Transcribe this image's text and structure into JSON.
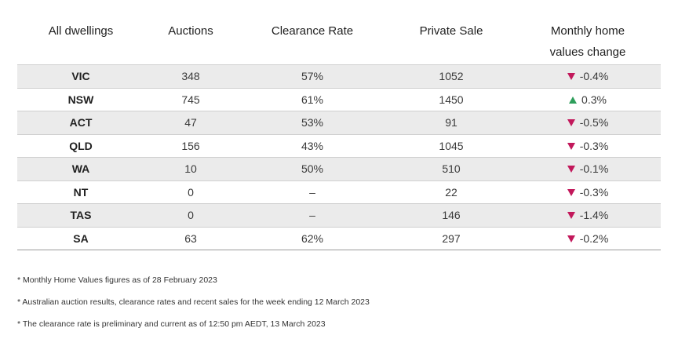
{
  "table": {
    "headers": {
      "col1": "All dwellings",
      "col2": "Auctions",
      "col3": "Clearance Rate",
      "col4": "Private Sale",
      "col5_line1": "Monthly home",
      "col5_line2": "values change"
    },
    "rows": [
      {
        "state": "VIC",
        "auctions": "348",
        "clearance": "57%",
        "private": "1052",
        "direction": "down",
        "change": "-0.4%"
      },
      {
        "state": "NSW",
        "auctions": "745",
        "clearance": "61%",
        "private": "1450",
        "direction": "up",
        "change": "0.3%"
      },
      {
        "state": "ACT",
        "auctions": "47",
        "clearance": "53%",
        "private": "91",
        "direction": "down",
        "change": "-0.5%"
      },
      {
        "state": "QLD",
        "auctions": "156",
        "clearance": "43%",
        "private": "1045",
        "direction": "down",
        "change": "-0.3%"
      },
      {
        "state": "WA",
        "auctions": "10",
        "clearance": "50%",
        "private": "510",
        "direction": "down",
        "change": "-0.1%"
      },
      {
        "state": "NT",
        "auctions": "0",
        "clearance": "–",
        "private": "22",
        "direction": "down",
        "change": "-0.3%"
      },
      {
        "state": "TAS",
        "auctions": "0",
        "clearance": "–",
        "private": "146",
        "direction": "down",
        "change": "-1.4%"
      },
      {
        "state": "SA",
        "auctions": "63",
        "clearance": "62%",
        "private": "297",
        "direction": "down",
        "change": "-0.2%"
      }
    ]
  },
  "colors": {
    "down_arrow": "#c2185b",
    "up_arrow": "#2e9e5b",
    "stripe": "#ebebeb"
  },
  "notes": [
    "* Monthly Home Values figures as of 28 February 2023",
    "* Australian auction results, clearance rates and recent sales for the week ending 12 March 2023",
    "* The clearance rate is preliminary and current as of 12:50 pm AEDT, 13 March 2023"
  ]
}
